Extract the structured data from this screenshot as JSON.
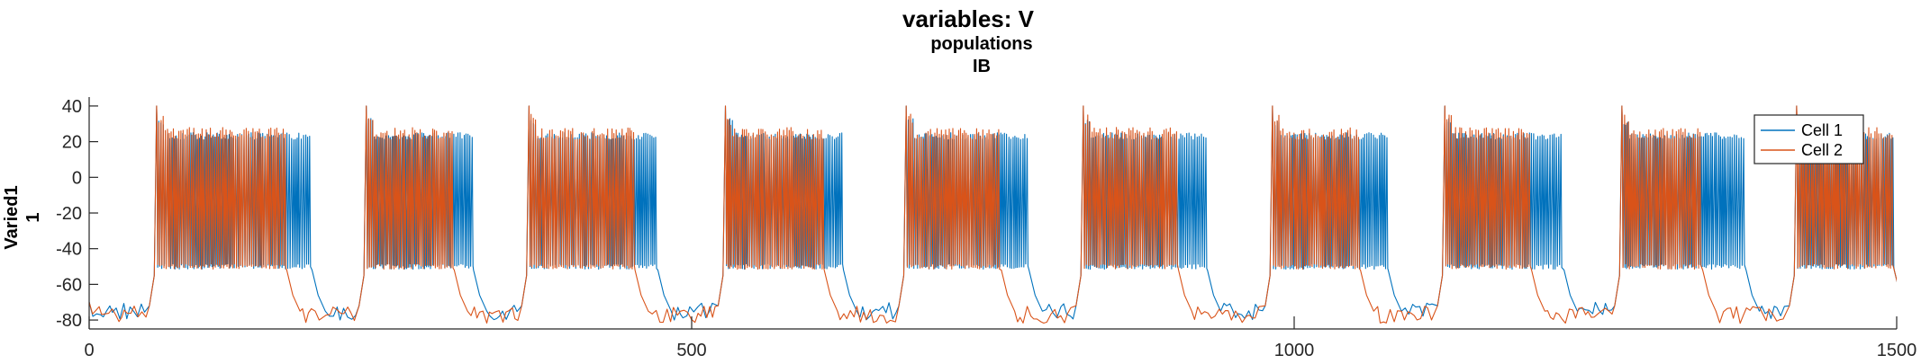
{
  "chart_data": {
    "type": "line",
    "title": "variables: V",
    "subtitle_lines": [
      "populations",
      "IB"
    ],
    "xlabel": "",
    "ylabel_lines": [
      "Varied1",
      "1"
    ],
    "xlim": [
      0,
      1500
    ],
    "ylim": [
      -85,
      45
    ],
    "xticks": [
      0,
      500,
      1000,
      1500
    ],
    "xtick_labels": [
      "0",
      "500",
      "1000",
      "1500"
    ],
    "yticks": [
      40,
      20,
      0,
      -20,
      -40,
      -60,
      -80
    ],
    "ytick_labels": [
      "40",
      "20",
      "0",
      "-20",
      "-40",
      "-60",
      "-80"
    ],
    "grid": false,
    "legend_position": "top-right",
    "series": [
      {
        "name": "Cell 1",
        "color": "#0072BD",
        "bursts": [
          [
            56,
            184
          ],
          [
            230,
            318
          ],
          [
            365,
            471
          ],
          [
            528,
            625
          ],
          [
            678,
            779
          ],
          [
            825,
            927
          ],
          [
            982,
            1077
          ],
          [
            1125,
            1223
          ],
          [
            1272,
            1374
          ],
          [
            1417,
            1497
          ]
        ],
        "spike_high": [
          21,
          25
        ],
        "spike_low": -50,
        "rest_v": -75
      },
      {
        "name": "Cell 2",
        "color": "#D95319",
        "bursts": [
          [
            56,
            163
          ],
          [
            230,
            302
          ],
          [
            365,
            452
          ],
          [
            528,
            609
          ],
          [
            678,
            756
          ],
          [
            825,
            903
          ],
          [
            982,
            1054
          ],
          [
            1125,
            1196
          ],
          [
            1272,
            1338
          ],
          [
            1417,
            1497
          ]
        ],
        "spike_high": [
          21,
          28
        ],
        "spike_low": -50,
        "rest_v": -77
      }
    ]
  }
}
